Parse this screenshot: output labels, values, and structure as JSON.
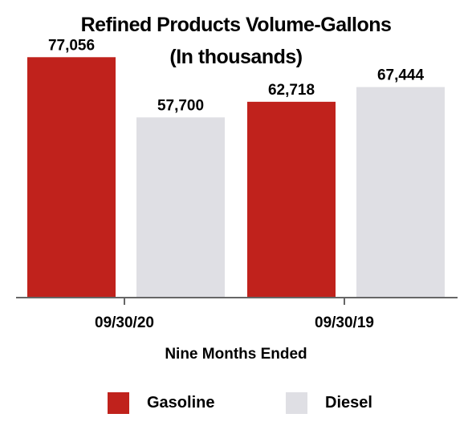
{
  "title_line1": "Refined Products Volume-Gallons",
  "title_line2": "(In thousands)",
  "chart_data": {
    "type": "bar",
    "title": "Refined Products Volume-Gallons (In thousands)",
    "categories": [
      "09/30/20",
      "09/30/19"
    ],
    "series": [
      {
        "name": "Gasoline",
        "color": "#c0221c",
        "values": [
          77056,
          62718
        ],
        "labels": [
          "77,056",
          "62,718"
        ]
      },
      {
        "name": "Diesel",
        "color": "#dfdfe4",
        "values": [
          57700,
          67444
        ],
        "labels": [
          "57,700",
          "67,444"
        ]
      }
    ],
    "xlabel": "Nine Months Ended",
    "ylabel": "",
    "ylim": [
      0,
      81000
    ],
    "grid": false,
    "legend": "bottom"
  }
}
